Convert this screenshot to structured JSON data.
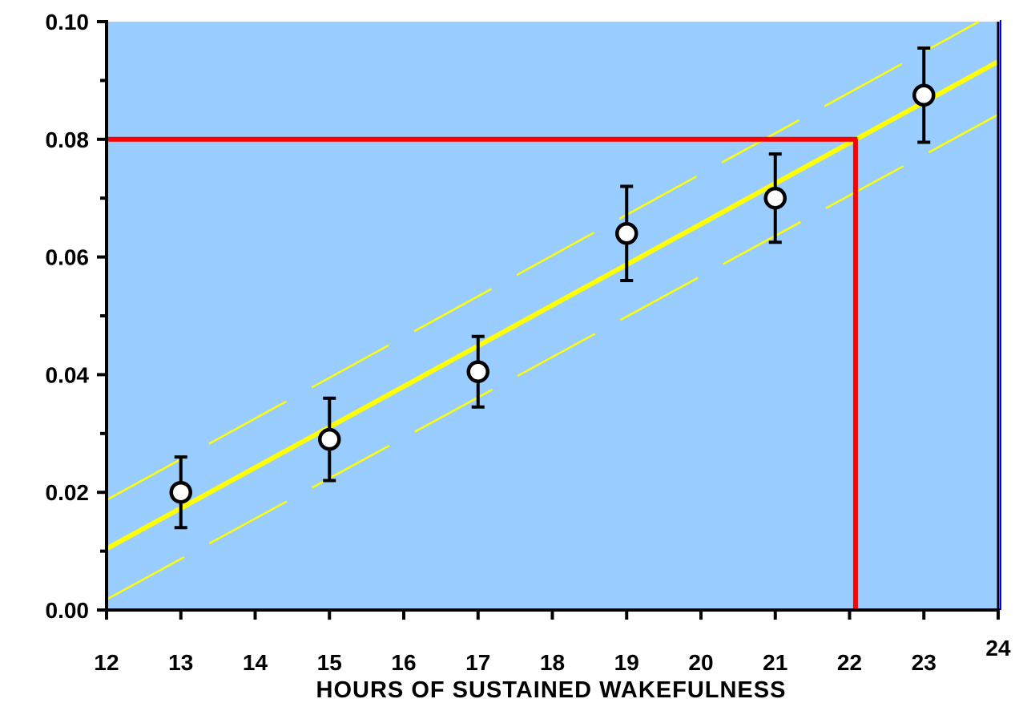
{
  "chart_data": {
    "type": "scatter",
    "title": "",
    "xlabel": "HOURS OF SUSTAINED WAKEFULNESS",
    "ylabel": "",
    "xlim": [
      12,
      24
    ],
    "ylim": [
      0,
      0.1
    ],
    "x_ticks": [
      "12",
      "13",
      "14",
      "15",
      "16",
      "17",
      "18",
      "19",
      "20",
      "21",
      "22",
      "23",
      "24"
    ],
    "y_ticks": [
      "0.00",
      "0.02",
      "0.04",
      "0.06",
      "0.08",
      "0.10"
    ],
    "grid": false,
    "legend": "none",
    "series": [
      {
        "points": [
          {
            "x": 13,
            "y": 0.02,
            "err_low": 0.014,
            "err_high": 0.026
          },
          {
            "x": 15,
            "y": 0.029,
            "err_low": 0.022,
            "err_high": 0.036
          },
          {
            "x": 17,
            "y": 0.0405,
            "err_low": 0.0345,
            "err_high": 0.0465
          },
          {
            "x": 19,
            "y": 0.064,
            "err_low": 0.056,
            "err_high": 0.072
          },
          {
            "x": 21,
            "y": 0.07,
            "err_low": 0.0625,
            "err_high": 0.0775
          },
          {
            "x": 23,
            "y": 0.0875,
            "err_low": 0.0795,
            "err_high": 0.0955
          }
        ]
      }
    ],
    "regression": {
      "x": [
        12,
        24
      ],
      "y": [
        0.0104,
        0.0932
      ]
    },
    "confidence_band": {
      "upper": {
        "x": [
          12,
          24
        ],
        "y": [
          0.0187,
          0.1018
        ]
      },
      "lower": {
        "x": [
          12,
          24
        ],
        "y": [
          0.0018,
          0.0842
        ]
      }
    },
    "reference": {
      "x": 22.08,
      "y": 0.08
    },
    "colors": {
      "plot_background": "#99ccff",
      "regression": "#ffff00",
      "reference": "#ff0000",
      "markers": "#000000",
      "marker_fill": "#ffffff"
    }
  }
}
